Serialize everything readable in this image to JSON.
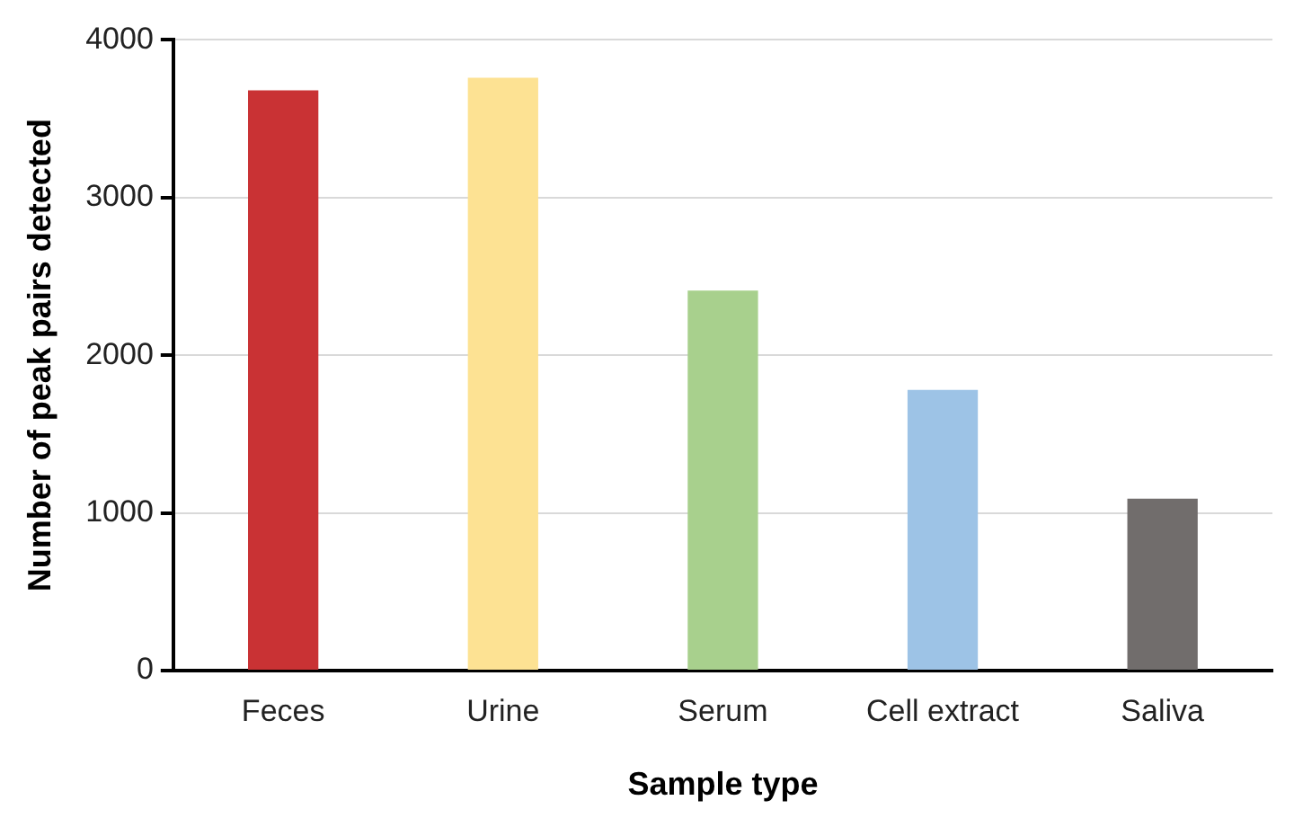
{
  "chart_data": {
    "type": "bar",
    "xlabel": "Sample type",
    "ylabel": "Number of peak pairs detected",
    "categories": [
      "Feces",
      "Urine",
      "Serum",
      "Cell extract",
      "Saliva"
    ],
    "values": [
      3680,
      3760,
      2410,
      1780,
      1090
    ],
    "colors": [
      "#c93234",
      "#fde293",
      "#a8d08d",
      "#9dc3e6",
      "#716d6c"
    ],
    "ylim": [
      0,
      4000
    ],
    "yticks": [
      0,
      1000,
      2000,
      3000,
      4000
    ],
    "grid": "y",
    "legend": false
  }
}
